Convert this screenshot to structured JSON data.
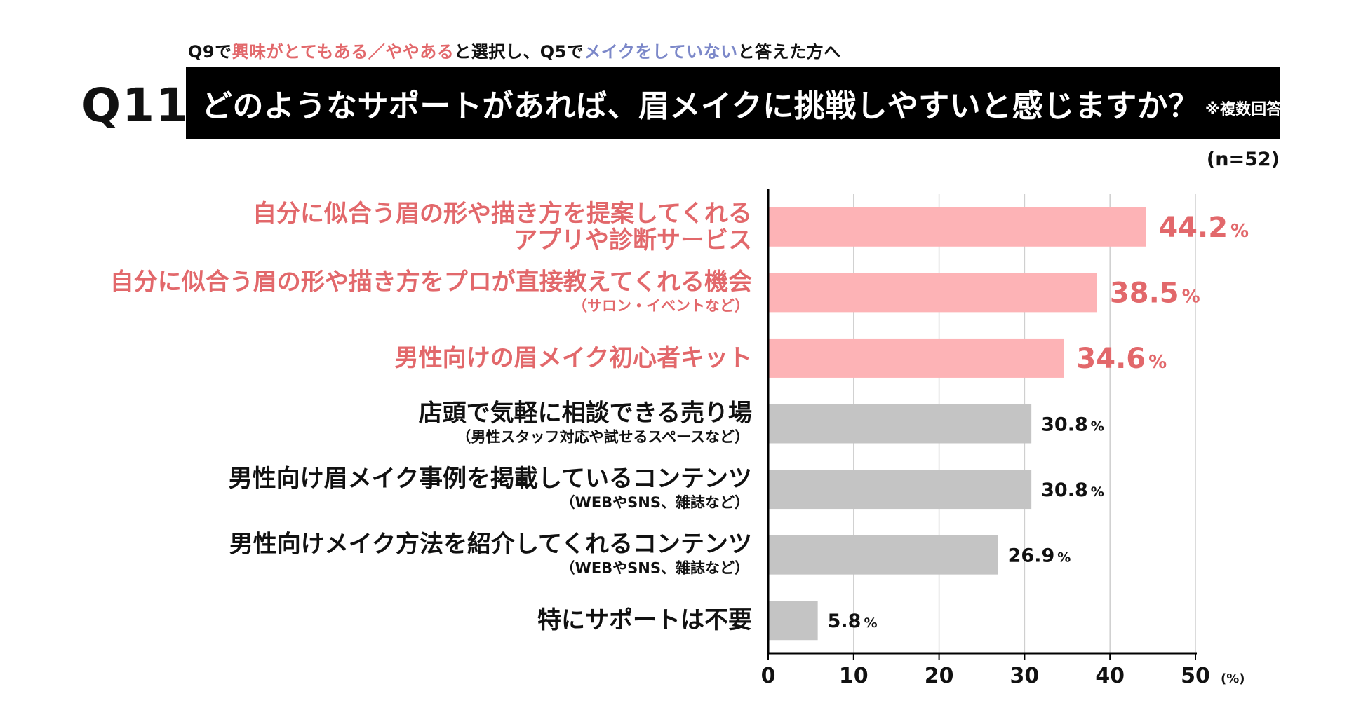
{
  "header": {
    "subtitle_parts": [
      {
        "text": "Q9で",
        "style": "normal"
      },
      {
        "text": "興味がとてもある／ややある",
        "style": "red"
      },
      {
        "text": "と選択し、Q5で",
        "style": "normal"
      },
      {
        "text": "メイクをしていない",
        "style": "blue"
      },
      {
        "text": "と答えた方へ",
        "style": "normal"
      }
    ],
    "question_number": "Q11",
    "question": "どのようなサポートがあれば、眉メイクに挑戦しやすいと感じますか？",
    "question_note": "※複数回答",
    "sample_size": "(n=52)"
  },
  "colors": {
    "highlight_bar": "#fdb3b6",
    "highlight_text": "#e2686b",
    "normal_bar": "#c4c4c4",
    "normal_text": "#111111",
    "grid": "#cfcfcf",
    "axis": "#000000"
  },
  "chart_data": {
    "type": "bar",
    "orientation": "horizontal",
    "xlim": [
      0,
      50
    ],
    "ticks": [
      0,
      10,
      20,
      30,
      40,
      50
    ],
    "tick_labels": [
      "0",
      "10",
      "20",
      "30",
      "40",
      "50"
    ],
    "unit_label": "(%)",
    "grid": true,
    "categories": [
      {
        "lines": [
          "自分に似合う眉の形や描き方を提案してくれる",
          "アプリや診断サービス"
        ],
        "sub": "",
        "highlight": true
      },
      {
        "lines": [
          "自分に似合う眉の形や描き方をプロが直接教えてくれる機会"
        ],
        "sub": "（サロン・イベントなど）",
        "highlight": true
      },
      {
        "lines": [
          "男性向けの眉メイク初心者キット"
        ],
        "sub": "",
        "highlight": true
      },
      {
        "lines": [
          "店頭で気軽に相談できる売り場"
        ],
        "sub": "（男性スタッフ対応や試せるスペースなど）",
        "highlight": false
      },
      {
        "lines": [
          "男性向け眉メイク事例を掲載しているコンテンツ"
        ],
        "sub": "（WEBやSNS、雑誌など）",
        "highlight": false
      },
      {
        "lines": [
          "男性向けメイク方法を紹介してくれるコンテンツ"
        ],
        "sub": "（WEBやSNS、雑誌など）",
        "highlight": false
      },
      {
        "lines": [
          "特にサポートは不要"
        ],
        "sub": "",
        "highlight": false
      }
    ],
    "values": [
      44.2,
      38.5,
      34.6,
      30.8,
      30.8,
      26.9,
      5.8
    ],
    "value_labels": [
      "44.2",
      "38.5",
      "34.6",
      "30.8",
      "30.8",
      "26.9",
      "5.8"
    ],
    "value_suffix": "%"
  }
}
